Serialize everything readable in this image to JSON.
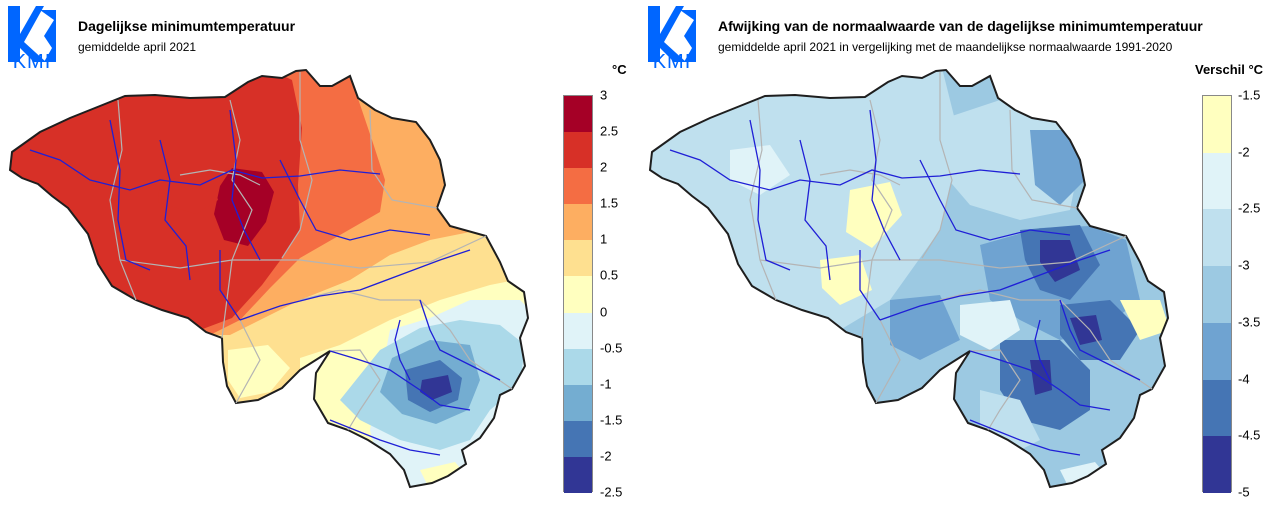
{
  "panels": [
    {
      "logo_text": "KMI",
      "title": "Dagelijkse minimumtemperatuur",
      "subtitle": "gemiddelde april 2021",
      "unit": "°C",
      "legend_ticks": [
        "3",
        "2.5",
        "2",
        "1.5",
        "1",
        "0.5",
        "0",
        "-0.5",
        "-1",
        "-1.5",
        "-2",
        "-2.5"
      ],
      "legend_colors": [
        "#a50026",
        "#d73027",
        "#f46d43",
        "#fdae61",
        "#fee090",
        "#ffffbf",
        "#e0f3f8",
        "#abd9e9",
        "#74add1",
        "#4575b4",
        "#313695"
      ]
    },
    {
      "logo_text": "KMI",
      "title": "Afwijking van de normaalwaarde van de dagelijkse minimumtemperatuur",
      "subtitle": "gemiddelde april 2021 in vergelijking met de maandelijkse normaalwaarde 1991-2020",
      "unit": "Verschil °C",
      "legend_ticks": [
        "-1.5",
        "-2",
        "-2.5",
        "-3",
        "-3.5",
        "-4",
        "-4.5",
        "-5"
      ],
      "legend_colors": [
        "#ffffbf",
        "#e0f3f8",
        "#bfe0ee",
        "#9cc9e2",
        "#6fa3d1",
        "#4575b4",
        "#313695"
      ]
    }
  ],
  "colors": {
    "outline": "#1e1e1e",
    "river": "#1f1fd6",
    "province_border": "#b4b4b4",
    "logo_blue": "#0066ff"
  }
}
